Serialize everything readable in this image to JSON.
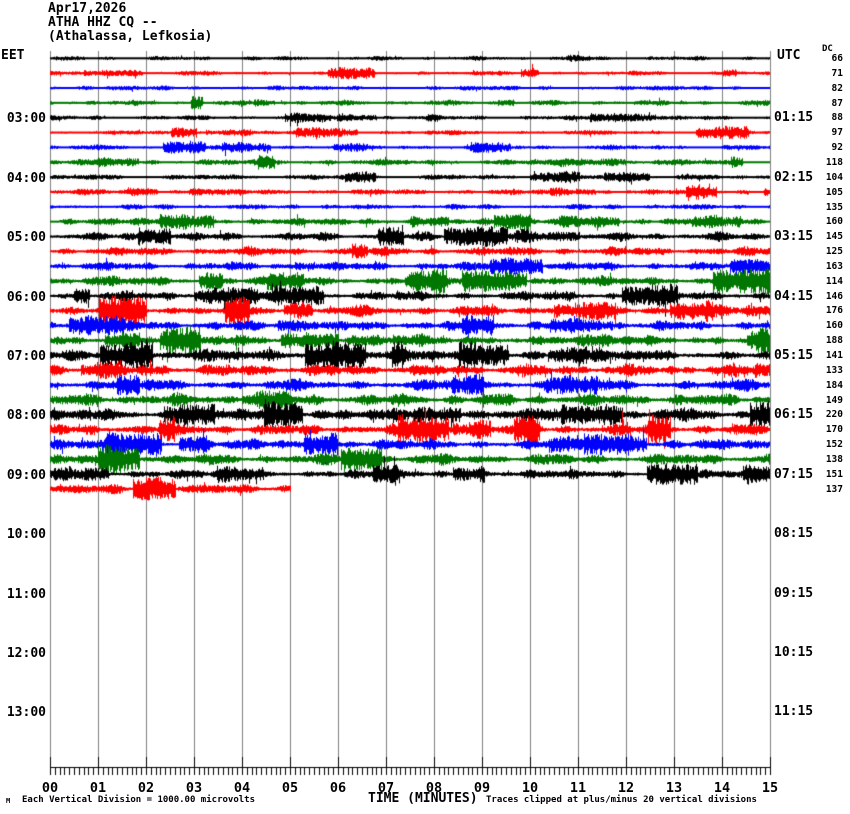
{
  "header": {
    "date": "Apr17,2026",
    "station": "ATHA HHZ CQ --",
    "location": "(Athalassa, Lefkosia)"
  },
  "axes": {
    "left_tz": "EET",
    "right_tz": "UTC",
    "dc_label": "DC",
    "x_title": "TIME (MINUTES)",
    "x_tick_labels": [
      "00",
      "01",
      "02",
      "03",
      "04",
      "05",
      "06",
      "07",
      "08",
      "09",
      "10",
      "11",
      "12",
      "13",
      "14",
      "15"
    ]
  },
  "footer": {
    "corner_glyph": "M",
    "left_note": "Each Vertical Division = 1000.00 microvolts",
    "right_note": "Traces clipped at plus/minus 20 vertical divisions"
  },
  "colors": {
    "background": "#ffffff",
    "grid": "#808080",
    "axis": "#000000",
    "text": "#000000",
    "trace_cycle": [
      "#000000",
      "#ff0000",
      "#0000ff",
      "#007700"
    ]
  },
  "chart_data": {
    "type": "line",
    "subtype": "helicorder",
    "minutes_per_line": 15,
    "x_range_minutes": [
      0,
      15
    ],
    "grid": "vertical-minute-lines",
    "left_hour_labels": [
      {
        "row": 4,
        "text": "03:00"
      },
      {
        "row": 8,
        "text": "04:00"
      },
      {
        "row": 12,
        "text": "05:00"
      },
      {
        "row": 16,
        "text": "06:00"
      },
      {
        "row": 20,
        "text": "07:00"
      },
      {
        "row": 24,
        "text": "08:00"
      },
      {
        "row": 28,
        "text": "09:00"
      },
      {
        "row": 32,
        "text": "10:00"
      },
      {
        "row": 36,
        "text": "11:00"
      },
      {
        "row": 40,
        "text": "12:00"
      },
      {
        "row": 44,
        "text": "13:00"
      }
    ],
    "right_hour_labels": [
      {
        "row": 4,
        "text": "01:15"
      },
      {
        "row": 8,
        "text": "02:15"
      },
      {
        "row": 12,
        "text": "03:15"
      },
      {
        "row": 16,
        "text": "04:15"
      },
      {
        "row": 20,
        "text": "05:15"
      },
      {
        "row": 24,
        "text": "06:15"
      },
      {
        "row": 28,
        "text": "07:15"
      },
      {
        "row": 32,
        "text": "08:15"
      },
      {
        "row": 36,
        "text": "09:15"
      },
      {
        "row": 40,
        "text": "10:15"
      },
      {
        "row": 44,
        "text": "11:15"
      }
    ],
    "rows": [
      {
        "color": 0,
        "dc": 66,
        "amp": 2.2,
        "cover": 1,
        "spikes": []
      },
      {
        "color": 1,
        "dc": 71,
        "amp": 2.2,
        "cover": 1,
        "spikes": [
          {
            "m": 10.05,
            "up": 9,
            "dn": 4
          }
        ]
      },
      {
        "color": 2,
        "dc": 82,
        "amp": 2.4,
        "cover": 1,
        "spikes": []
      },
      {
        "color": 3,
        "dc": 87,
        "amp": 2.7,
        "cover": 1,
        "spikes": []
      },
      {
        "color": 0,
        "dc": 88,
        "amp": 2.4,
        "cover": 1,
        "spikes": []
      },
      {
        "color": 1,
        "dc": 97,
        "amp": 2.4,
        "cover": 1,
        "spikes": []
      },
      {
        "color": 2,
        "dc": 92,
        "amp": 2.6,
        "cover": 1,
        "spikes": []
      },
      {
        "color": 3,
        "dc": 118,
        "amp": 3.2,
        "cover": 1,
        "spikes": []
      },
      {
        "color": 0,
        "dc": 104,
        "amp": 2.8,
        "cover": 1,
        "spikes": []
      },
      {
        "color": 1,
        "dc": 105,
        "amp": 3.0,
        "cover": 1,
        "spikes": []
      },
      {
        "color": 2,
        "dc": 135,
        "amp": 2.7,
        "cover": 1,
        "spikes": []
      },
      {
        "color": 3,
        "dc": 160,
        "amp": 3.8,
        "cover": 1,
        "spikes": []
      },
      {
        "color": 0,
        "dc": 145,
        "amp": 4.6,
        "cover": 1,
        "spikes": []
      },
      {
        "color": 1,
        "dc": 125,
        "amp": 4.8,
        "cover": 1,
        "spikes": []
      },
      {
        "color": 2,
        "dc": 163,
        "amp": 4.6,
        "cover": 1,
        "spikes": []
      },
      {
        "color": 3,
        "dc": 114,
        "amp": 5.2,
        "cover": 1,
        "spikes": []
      },
      {
        "color": 0,
        "dc": 146,
        "amp": 5.0,
        "cover": 1,
        "spikes": []
      },
      {
        "color": 1,
        "dc": 176,
        "amp": 5.8,
        "cover": 1,
        "spikes": []
      },
      {
        "color": 2,
        "dc": 160,
        "amp": 5.4,
        "cover": 1,
        "spikes": []
      },
      {
        "color": 3,
        "dc": 188,
        "amp": 6.4,
        "cover": 1,
        "spikes": []
      },
      {
        "color": 0,
        "dc": 141,
        "amp": 6.6,
        "cover": 1,
        "spikes": [
          {
            "m": 2.0,
            "up": 16,
            "dn": 8
          }
        ]
      },
      {
        "color": 1,
        "dc": 133,
        "amp": 6.6,
        "cover": 1,
        "spikes": [
          {
            "m": 2.08,
            "up": 10,
            "dn": 6
          }
        ]
      },
      {
        "color": 2,
        "dc": 184,
        "amp": 6.0,
        "cover": 1,
        "spikes": []
      },
      {
        "color": 3,
        "dc": 149,
        "amp": 6.8,
        "cover": 1,
        "spikes": []
      },
      {
        "color": 0,
        "dc": 220,
        "amp": 6.8,
        "cover": 1,
        "spikes": []
      },
      {
        "color": 1,
        "dc": 170,
        "amp": 6.2,
        "cover": 1,
        "spikes": [
          {
            "m": 11.92,
            "up": 18,
            "dn": 8
          }
        ]
      },
      {
        "color": 2,
        "dc": 152,
        "amp": 5.6,
        "cover": 1,
        "spikes": []
      },
      {
        "color": 3,
        "dc": 138,
        "amp": 6.0,
        "cover": 1,
        "spikes": []
      },
      {
        "color": 0,
        "dc": 151,
        "amp": 4.8,
        "cover": 1,
        "spikes": []
      },
      {
        "color": 1,
        "dc": 137,
        "amp": 5.4,
        "cover": 0.335,
        "spikes": []
      }
    ]
  }
}
